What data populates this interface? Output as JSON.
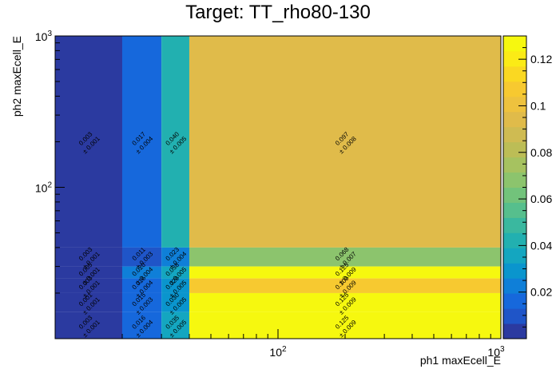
{
  "chart_data": {
    "type": "heatmap",
    "title": "Target: TT_rho80-130",
    "xlabel": "ph1 maxEcell_E",
    "ylabel": "ph2 maxEcell_E",
    "x_scale": "log",
    "y_scale": "log",
    "xlim": [
      10,
      1000
    ],
    "ylim": [
      10,
      1000
    ],
    "x_edges": [
      10,
      20,
      30,
      40,
      1000
    ],
    "y_edges": [
      10,
      15,
      20,
      25,
      30,
      40,
      1000
    ],
    "x_tick_labels": [
      "10^2",
      "10^3"
    ],
    "y_tick_labels": [
      "10^2",
      "10^3"
    ],
    "colorbar": {
      "min": 0,
      "max": 0.13,
      "ticks": [
        0.02,
        0.04,
        0.06,
        0.08,
        0.1,
        0.12
      ],
      "tick_labels": [
        "0.02",
        "0.04",
        "0.06",
        "0.08",
        "0.1",
        "0.12"
      ]
    },
    "cells": [
      {
        "x": 0,
        "y": 5,
        "value": 0.003,
        "err": 0.001
      },
      {
        "x": 1,
        "y": 5,
        "value": 0.017,
        "err": 0.004
      },
      {
        "x": 2,
        "y": 5,
        "value": 0.04,
        "err": 0.005
      },
      {
        "x": 3,
        "y": 5,
        "value": 0.097,
        "err": 0.008
      },
      {
        "x": 0,
        "y": 4,
        "value": 0.003,
        "err": 0.001
      },
      {
        "x": 1,
        "y": 4,
        "value": 0.011,
        "err": 0.003
      },
      {
        "x": 2,
        "y": 4,
        "value": 0.023,
        "err": 0.004
      },
      {
        "x": 3,
        "y": 4,
        "value": 0.068,
        "err": 0.007
      },
      {
        "x": 0,
        "y": 3,
        "value": 0.005,
        "err": 0.001
      },
      {
        "x": 1,
        "y": 3,
        "value": 0.02,
        "err": 0.004
      },
      {
        "x": 2,
        "y": 3,
        "value": 0.038,
        "err": 0.005
      },
      {
        "x": 3,
        "y": 3,
        "value": 0.125,
        "err": 0.009
      },
      {
        "x": 0,
        "y": 2,
        "value": 0.003,
        "err": 0.001
      },
      {
        "x": 1,
        "y": 2,
        "value": 0.016,
        "err": 0.004
      },
      {
        "x": 2,
        "y": 2,
        "value": 0.029,
        "err": 0.005
      },
      {
        "x": 3,
        "y": 2,
        "value": 0.109,
        "err": 0.009
      },
      {
        "x": 0,
        "y": 1,
        "value": 0.001,
        "err": 0.001
      },
      {
        "x": 1,
        "y": 1,
        "value": 0.015,
        "err": 0.003
      },
      {
        "x": 2,
        "y": 1,
        "value": 0.03,
        "err": 0.005
      },
      {
        "x": 3,
        "y": 1,
        "value": 0.125,
        "err": 0.009
      },
      {
        "x": 0,
        "y": 0,
        "value": 0.003,
        "err": 0.001
      },
      {
        "x": 1,
        "y": 0,
        "value": 0.016,
        "err": 0.004
      },
      {
        "x": 2,
        "y": 0,
        "value": 0.035,
        "err": 0.005
      },
      {
        "x": 3,
        "y": 0,
        "value": 0.125,
        "err": 0.009
      }
    ],
    "palette": [
      "#2b3aa0",
      "#1f55c8",
      "#1668dc",
      "#0f7fd8",
      "#0a95cd",
      "#14a6c0",
      "#22b0b0",
      "#3ab89f",
      "#56bf8d",
      "#72c37b",
      "#8cc46d",
      "#a6c260",
      "#bcbd56",
      "#cfbb52",
      "#e0bb4a",
      "#eec23e",
      "#f7c930",
      "#fad822",
      "#fbeb16",
      "#f6f80f"
    ]
  }
}
